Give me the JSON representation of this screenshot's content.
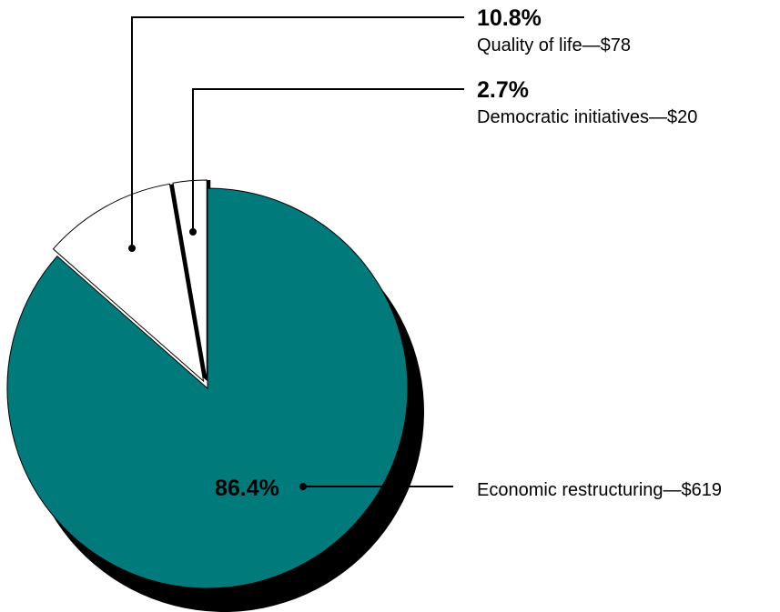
{
  "chart_data": {
    "type": "pie",
    "title": "",
    "start_angle_deg": 0,
    "direction": "clockwise",
    "slices": [
      {
        "category": "Economic restructuring",
        "percent_label": "86.4%",
        "percent": 86.4,
        "amount_label": "$619",
        "amount": 619,
        "color": "#007a7a",
        "exploded": false
      },
      {
        "category": "Quality of life",
        "percent_label": "10.8%",
        "percent": 10.8,
        "amount_label": "$78",
        "amount": 78,
        "color": "#ffffff",
        "exploded": true
      },
      {
        "category": "Democratic initiatives",
        "percent_label": "2.7%",
        "percent": 2.7,
        "amount_label": "$20",
        "amount": 20,
        "color": "#ffffff",
        "exploded": true
      }
    ],
    "shadow_color": "#000000",
    "label_separator": "—"
  }
}
